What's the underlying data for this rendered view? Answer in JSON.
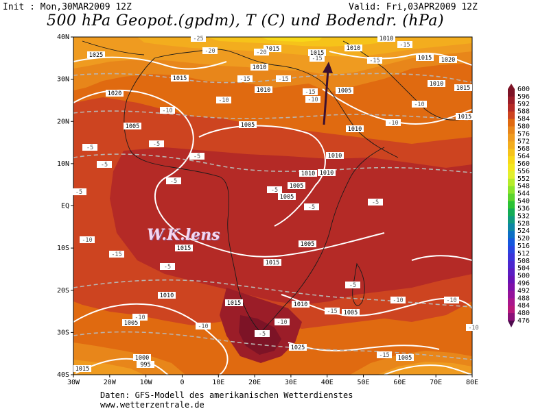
{
  "header": {
    "init": "Init : Mon,30MAR2009 12Z",
    "valid": "Valid: Fri,03APR2009 12Z",
    "title": "500 hPa Geopot.(gpdm), T (C) und Bodendr. (hPa)"
  },
  "map": {
    "lat_ticks": [
      "40N",
      "30N",
      "20N",
      "10N",
      "EQ",
      "10S",
      "20S",
      "30S",
      "40S"
    ],
    "lon_ticks": [
      "30W",
      "20W",
      "10W",
      "0",
      "10E",
      "20E",
      "30E",
      "40E",
      "50E",
      "60E",
      "70E",
      "80E"
    ],
    "pressure_labels": [
      "1025",
      "1020",
      "1015",
      "1015",
      "1010",
      "1010",
      "1005",
      "1005",
      "1010",
      "1010",
      "1005",
      "1010",
      "1005",
      "1015",
      "1010",
      "1010",
      "1015",
      "1020",
      "1015",
      "1010",
      "1015",
      "1010",
      "1005",
      "1000",
      "995",
      "1015",
      "1025",
      "1010",
      "1015",
      "1005",
      "1015",
      "1010",
      "1005",
      "1015",
      "1005",
      "1005"
    ],
    "temp_labels": [
      "-25",
      "-20",
      "-20",
      "-15",
      "-15",
      "-15",
      "-15",
      "-15",
      "-10",
      "-10",
      "-10",
      "-10",
      "-10",
      "-5",
      "-5",
      "-5",
      "-5",
      "-5",
      "-5",
      "-5",
      "-5",
      "-5",
      "-10",
      "-15",
      "-15",
      "-15",
      "-10",
      "-10",
      "-10",
      "-5",
      "-5",
      "-5",
      "-10",
      "-10",
      "-10",
      "-15"
    ],
    "colors": {
      "c584": "#e06a10",
      "c580": "#e8861a",
      "c576": "#ef9b20",
      "c572": "#f3ad1e",
      "c568": "#f6c31a",
      "c564": "#f8d818",
      "c588": "#cd4420",
      "c592": "#b42a26",
      "c596": "#9b1d28",
      "c600": "#7d1326"
    }
  },
  "colorbar": {
    "labels": [
      "600",
      "596",
      "592",
      "588",
      "584",
      "580",
      "576",
      "572",
      "568",
      "564",
      "560",
      "556",
      "552",
      "548",
      "544",
      "540",
      "536",
      "532",
      "528",
      "524",
      "520",
      "516",
      "512",
      "508",
      "504",
      "500",
      "496",
      "492",
      "488",
      "484",
      "480",
      "476"
    ],
    "colors": [
      "#7d1326",
      "#9b1d28",
      "#b42a26",
      "#cd4420",
      "#e06a10",
      "#e8861a",
      "#ef9b20",
      "#f3ad1e",
      "#f6c31a",
      "#f8d818",
      "#f3e71f",
      "#e2ef2e",
      "#b6ec2a",
      "#8ae42b",
      "#5bd42d",
      "#2cc234",
      "#13ac56",
      "#0f9a7d",
      "#0d86a3",
      "#0c6fc4",
      "#1557dd",
      "#2845e0",
      "#3b34d9",
      "#4b27cf",
      "#5a1cc2",
      "#6712b4",
      "#7e10a8",
      "#94129b",
      "#a9168c",
      "#b7187a",
      "#8a1178",
      "#4d0a4d"
    ]
  },
  "watermark": "W.K.lens",
  "footer": {
    "line1": "Daten: GFS-Modell des amerikanischen Wetterdienstes",
    "line2": "www.wetterzentrale.de"
  }
}
